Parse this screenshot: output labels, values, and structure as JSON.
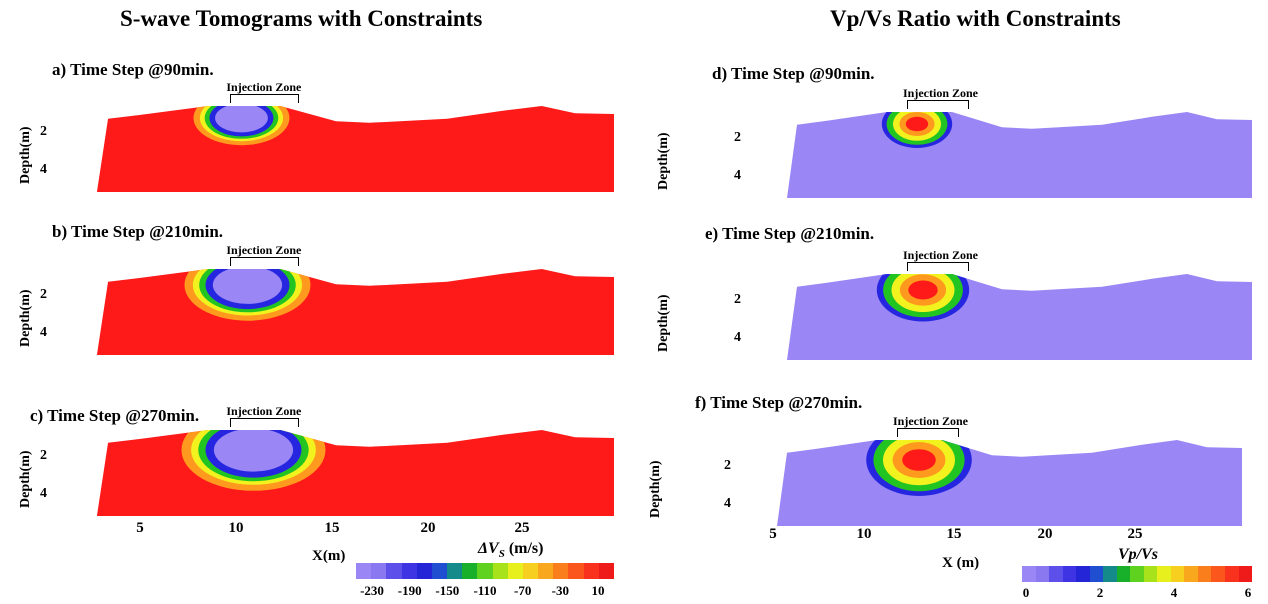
{
  "left_title": "S-wave Tomograms with Constraints",
  "right_title": "Vp/Vs Ratio with Constraints",
  "chart_data": [
    {
      "type": "heatmap",
      "panel": "a",
      "title": "a)  Time Step @90min.",
      "ylabel": "Depth(m)",
      "yticks": [
        "2",
        "4"
      ],
      "annotation": "Injection Zone",
      "quantity": "ΔVs (m/s)"
    },
    {
      "type": "heatmap",
      "panel": "b",
      "title": "b) Time Step @210min.",
      "ylabel": "Depth(m)",
      "yticks": [
        "2",
        "4"
      ],
      "annotation": "Injection Zone",
      "quantity": "ΔVs (m/s)"
    },
    {
      "type": "heatmap",
      "panel": "c",
      "title": "c) Time Step @270min.",
      "ylabel": "Depth(m)",
      "yticks": [
        "2",
        "4"
      ],
      "annotation": "Injection Zone",
      "quantity": "ΔVs (m/s)",
      "xlabel": "X(m)",
      "xticks": [
        "5",
        "10",
        "15",
        "20",
        "25"
      ]
    },
    {
      "type": "heatmap",
      "panel": "d",
      "title": "d)  Time Step @90min.",
      "ylabel": "Depth(m)",
      "yticks": [
        "2",
        "4"
      ],
      "annotation": "Injection Zone",
      "quantity": "Vp/Vs"
    },
    {
      "type": "heatmap",
      "panel": "e",
      "title": "e) Time Step @210min.",
      "ylabel": "Depth(m)",
      "yticks": [
        "2",
        "4"
      ],
      "annotation": "Injection Zone",
      "quantity": "Vp/Vs"
    },
    {
      "type": "heatmap",
      "panel": "f",
      "title": "f) Time Step @270min.",
      "ylabel": "Depth(m)",
      "yticks": [
        "2",
        "4"
      ],
      "annotation": "Injection Zone",
      "quantity": "Vp/Vs",
      "xlabel": "X (m)",
      "xticks": [
        "5",
        "10",
        "15",
        "20",
        "25"
      ]
    }
  ],
  "colorbar_left": {
    "label": "ΔV",
    "label_sub": "S",
    "label_unit": " (m/s)",
    "ticks": [
      "-230",
      "-190",
      "-150",
      "-110",
      "-70",
      "-30",
      "10"
    ],
    "range": [
      -230,
      10
    ]
  },
  "colorbar_right": {
    "label": "Vp/Vs",
    "ticks": [
      "0",
      "2",
      "4",
      "6"
    ],
    "range": [
      0,
      6
    ]
  },
  "colors": {
    "red": "#ff1a1a",
    "purple": "#9a86f5",
    "blue": "#2626e0",
    "green": "#22c422",
    "yellow": "#f2f21e",
    "orange": "#ff9a1e"
  },
  "colorbar_colors": [
    "#9a86f5",
    "#8a78f0",
    "#5d50ea",
    "#3e34e4",
    "#2525d8",
    "#1f4fd0",
    "#148a8a",
    "#18b02a",
    "#5ed21e",
    "#a8e21a",
    "#e7ef1d",
    "#f7cf1e",
    "#f9a81e",
    "#fb7e1c",
    "#fb561c",
    "#f8321c",
    "#ef1a1a"
  ]
}
